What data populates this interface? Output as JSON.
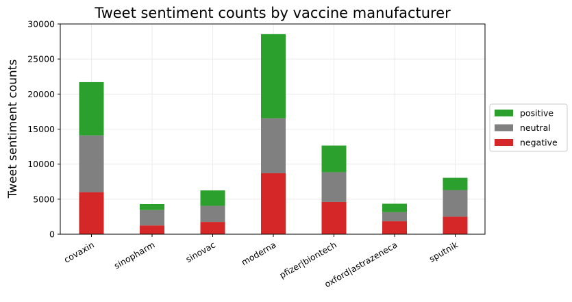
{
  "chart_data": {
    "type": "bar",
    "stacked": true,
    "title": "Tweet sentiment counts by vaccine manufacturer",
    "xlabel": "",
    "ylabel": "Tweet sentiment counts",
    "ylim": [
      0,
      30000
    ],
    "yticks": [
      0,
      5000,
      10000,
      15000,
      20000,
      25000,
      30000
    ],
    "grid": true,
    "legend_position": "right",
    "categories": [
      "covaxin",
      "sinopharm",
      "sinovac",
      "moderna",
      "pfizer|biontech",
      "oxford|astrazeneca",
      "sputnik"
    ],
    "series": [
      {
        "name": "negative",
        "color": "#d62728",
        "values": [
          6000,
          1250,
          1750,
          8700,
          4600,
          1850,
          2500
        ]
      },
      {
        "name": "neutral",
        "color": "#808080",
        "values": [
          8100,
          2200,
          2300,
          7850,
          4250,
          1300,
          3800
        ]
      },
      {
        "name": "positive",
        "color": "#2ca02c",
        "values": [
          7600,
          850,
          2200,
          12000,
          3800,
          1200,
          1750
        ]
      }
    ],
    "legend_order": [
      "positive",
      "neutral",
      "negative"
    ]
  }
}
